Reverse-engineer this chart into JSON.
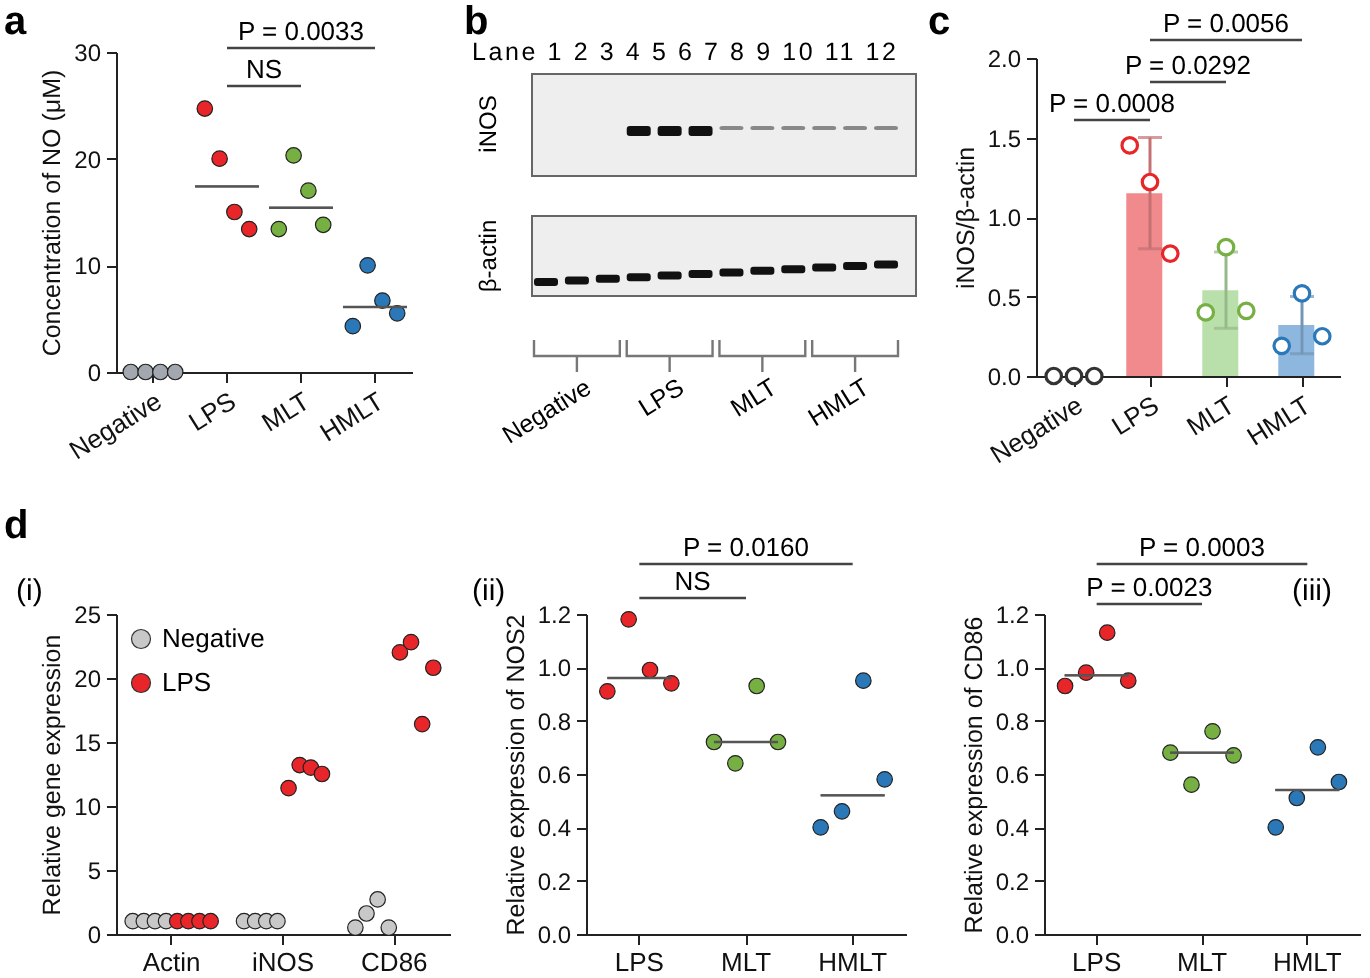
{
  "chart_data": [
    {
      "type": "scatter",
      "title": "a",
      "ylabel": "Concentration of NO (μM)",
      "categories": [
        "Negative",
        "LPS",
        "MLT",
        "HMLT"
      ],
      "ylim": [
        0,
        30
      ],
      "yticks": [
        0,
        10,
        20,
        30
      ],
      "marker": "circle",
      "annotations": [
        "P = 0.0033",
        "NS"
      ],
      "series": [
        {
          "x": [
            "Negative",
            "Negative",
            "Negative",
            "Negative",
            "LPS",
            "LPS",
            "LPS",
            "LPS",
            "MLT",
            "MLT",
            "MLT",
            "MLT",
            "HMLT",
            "HMLT",
            "HMLT",
            "HMLT"
          ],
          "values": [
            0,
            0,
            0,
            0,
            24.7,
            20,
            15,
            13.4,
            13.4,
            20.3,
            17,
            13.8,
            4.3,
            10,
            6.7,
            5.5
          ],
          "colors": [
            "#a3a8b0",
            "#a3a8b0",
            "#a3a8b0",
            "#a3a8b0",
            "#e8262a",
            "#e8262a",
            "#e8262a",
            "#e8262a",
            "#76b043",
            "#76b043",
            "#76b043",
            "#76b043",
            "#2a78b8",
            "#2a78b8",
            "#2a78b8",
            "#2a78b8"
          ]
        },
        {
          "type": "box",
          "color": "#555555",
          "x": [
            "LPS",
            "MLT",
            "HMLT"
          ],
          "boxes": [
            {
              "low": 17.4,
              "q1": 17.4,
              "median": 17.4,
              "q3": 17.4,
              "high": 17.4
            },
            {
              "low": 15.4,
              "q1": 15.4,
              "median": 15.4,
              "q3": 15.4,
              "high": 15.4
            },
            {
              "low": 6.1,
              "q1": 6.1,
              "median": 6.1,
              "q3": 6.1,
              "high": 6.1
            }
          ]
        }
      ]
    },
    {
      "type": "other",
      "title": "b",
      "annotations": [
        "Lane 1 2 3 4 5 6 7 8 9 10 11 12",
        "iNOS",
        "β-actin",
        "Negative",
        "LPS",
        "MLT",
        "HMLT"
      ]
    },
    {
      "type": "bar",
      "title": "c",
      "ylabel": "iNOS/β-actin",
      "categories": [
        "Negative",
        "LPS",
        "MLT",
        "HMLT"
      ],
      "ylim": [
        0,
        2
      ],
      "yticks": [
        {
          "value": 0,
          "label": "0.0"
        },
        {
          "value": 0.5,
          "label": "0.5"
        },
        {
          "value": 1,
          "label": "1.0"
        },
        {
          "value": 1.5,
          "label": "1.5"
        },
        {
          "value": 2,
          "label": "2.0"
        }
      ],
      "annotations": [
        "P = 0.0056",
        "P = 0.0292",
        "P = 0.0008"
      ],
      "series": [
        {
          "type": "bar",
          "values": [
            0,
            1.15,
            0.54,
            0.32
          ],
          "colors": [
            "#cccccc",
            "#f08a8c",
            "#b9e0ab",
            "#8db7de"
          ],
          "errors": [
            null,
            [
              0.8,
              1.5
            ],
            [
              0.3,
              0.78
            ],
            [
              0.14,
              0.5
            ]
          ]
        },
        {
          "type": "scatter",
          "marker": "circle",
          "x": [
            "Negative",
            "Negative",
            "Negative",
            "LPS",
            "LPS",
            "LPS",
            "MLT",
            "MLT",
            "MLT",
            "HMLT",
            "HMLT",
            "HMLT"
          ],
          "values": [
            0,
            0,
            0,
            1.45,
            1.22,
            0.77,
            0.4,
            0.81,
            0.41,
            0.19,
            0.52,
            0.25
          ],
          "colors": [
            "#333333",
            "#333333",
            "#333333",
            "#e8262a",
            "#e8262a",
            "#e8262a",
            "#76b043",
            "#76b043",
            "#76b043",
            "#2a78b8",
            "#2a78b8",
            "#2a78b8"
          ]
        }
      ]
    },
    {
      "type": "scatter",
      "title": "d",
      "subtitle": "(i)",
      "ylabel": "Relative gene expression",
      "categories": [
        "Actin",
        "iNOS",
        "CD86"
      ],
      "ylim": [
        0,
        25
      ],
      "yticks": [
        0,
        5,
        10,
        15,
        20,
        25
      ],
      "legend": "top left",
      "marker": "circle",
      "series": [
        {
          "name": "Negative",
          "color": "#c8c8c8",
          "x": [
            "Actin",
            "Actin",
            "Actin",
            "Actin",
            "iNOS",
            "iNOS",
            "iNOS",
            "iNOS",
            "CD86",
            "CD86",
            "CD86",
            "CD86"
          ],
          "values": [
            1,
            1,
            1,
            1,
            1,
            1,
            1,
            1,
            0.5,
            1.6,
            2.7,
            0.5
          ]
        },
        {
          "name": "LPS",
          "color": "#e8262a",
          "x": [
            "Actin",
            "Actin",
            "Actin",
            "Actin",
            "iNOS",
            "iNOS",
            "iNOS",
            "iNOS",
            "CD86",
            "CD86",
            "CD86",
            "CD86"
          ],
          "values": [
            1,
            1,
            1,
            1,
            11.4,
            13.2,
            13,
            12.5,
            22,
            22.8,
            16.4,
            20.8
          ]
        }
      ]
    },
    {
      "type": "scatter",
      "title": "(ii)",
      "ylabel": "Relative expression of NOS2",
      "categories": [
        "LPS",
        "MLT",
        "HMLT"
      ],
      "ylim": [
        0,
        1.2
      ],
      "yticks": [
        {
          "value": 0,
          "label": "0.0"
        },
        {
          "value": 0.2,
          "label": "0.2"
        },
        {
          "value": 0.4,
          "label": "0.4"
        },
        {
          "value": 0.6,
          "label": "0.6"
        },
        {
          "value": 0.8,
          "label": "0.8"
        },
        {
          "value": 1,
          "label": "1.0"
        },
        {
          "value": 1.2,
          "label": "1.2"
        }
      ],
      "marker": "circle",
      "annotations": [
        "P = 0.0160",
        "NS"
      ],
      "series": [
        {
          "x": [
            "LPS",
            "LPS",
            "LPS",
            "LPS",
            "MLT",
            "MLT",
            "MLT",
            "MLT",
            "HMLT",
            "HMLT",
            "HMLT",
            "HMLT"
          ],
          "values": [
            0.91,
            1.18,
            0.99,
            0.94,
            0.72,
            0.64,
            0.93,
            0.72,
            0.4,
            0.46,
            0.95,
            0.58
          ],
          "colors": [
            "#e8262a",
            "#e8262a",
            "#e8262a",
            "#e8262a",
            "#76b043",
            "#76b043",
            "#76b043",
            "#76b043",
            "#2a78b8",
            "#2a78b8",
            "#2a78b8",
            "#2a78b8"
          ]
        },
        {
          "type": "box",
          "color": "#555555",
          "x": [
            "LPS",
            "MLT",
            "HMLT"
          ],
          "boxes": [
            {
              "low": 0.96,
              "q1": 0.96,
              "median": 0.96,
              "q3": 0.96,
              "high": 0.96
            },
            {
              "low": 0.72,
              "q1": 0.72,
              "median": 0.72,
              "q3": 0.72,
              "high": 0.72
            },
            {
              "low": 0.52,
              "q1": 0.52,
              "median": 0.52,
              "q3": 0.52,
              "high": 0.52
            }
          ]
        }
      ]
    },
    {
      "type": "scatter",
      "title": "(iii)",
      "ylabel": "Relative expression of CD86",
      "categories": [
        "LPS",
        "MLT",
        "HMLT"
      ],
      "ylim": [
        0,
        1.2
      ],
      "yticks": [
        {
          "value": 0,
          "label": "0.0"
        },
        {
          "value": 0.2,
          "label": "0.2"
        },
        {
          "value": 0.4,
          "label": "0.4"
        },
        {
          "value": 0.6,
          "label": "0.6"
        },
        {
          "value": 0.8,
          "label": "0.8"
        },
        {
          "value": 1,
          "label": "1.0"
        },
        {
          "value": 1.2,
          "label": "1.2"
        }
      ],
      "marker": "circle",
      "annotations": [
        "P = 0.0003",
        "P = 0.0023"
      ],
      "series": [
        {
          "x": [
            "LPS",
            "LPS",
            "LPS",
            "LPS",
            "MLT",
            "MLT",
            "MLT",
            "MLT",
            "HMLT",
            "HMLT",
            "HMLT",
            "HMLT"
          ],
          "values": [
            0.93,
            0.98,
            1.13,
            0.95,
            0.68,
            0.56,
            0.76,
            0.67,
            0.4,
            0.51,
            0.7,
            0.57
          ],
          "colors": [
            "#e8262a",
            "#e8262a",
            "#e8262a",
            "#e8262a",
            "#76b043",
            "#76b043",
            "#76b043",
            "#76b043",
            "#2a78b8",
            "#2a78b8",
            "#2a78b8",
            "#2a78b8"
          ]
        },
        {
          "type": "box",
          "color": "#555555",
          "x": [
            "LPS",
            "MLT",
            "HMLT"
          ],
          "boxes": [
            {
              "low": 0.97,
              "q1": 0.97,
              "median": 0.97,
              "q3": 0.97,
              "high": 0.97
            },
            {
              "low": 0.68,
              "q1": 0.68,
              "median": 0.68,
              "q3": 0.68,
              "high": 0.68
            },
            {
              "low": 0.54,
              "q1": 0.54,
              "median": 0.54,
              "q3": 0.54,
              "high": 0.54
            }
          ]
        }
      ]
    }
  ]
}
